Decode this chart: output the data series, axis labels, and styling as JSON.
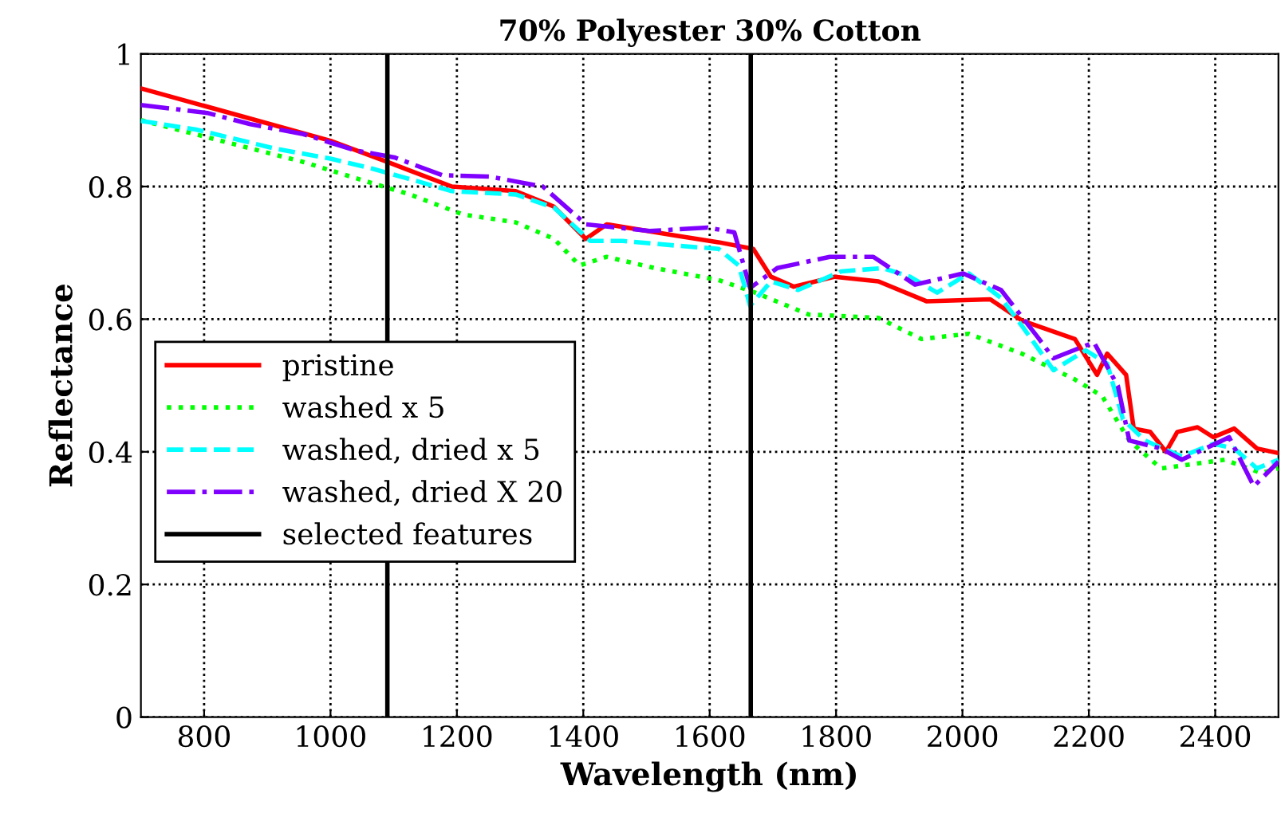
{
  "chart_data": {
    "type": "line",
    "title": "70% Polyester 30% Cotton",
    "xlabel": "Wavelength (nm)",
    "ylabel": "Reflectance",
    "xlim": [
      700,
      2500
    ],
    "ylim": [
      0,
      1
    ],
    "xticks": [
      800,
      1000,
      1200,
      1400,
      1600,
      1800,
      2000,
      2200,
      2400
    ],
    "yticks": [
      0,
      0.2,
      0.4,
      0.6,
      0.8,
      1
    ],
    "grid": true,
    "legend": "left",
    "marker": "none",
    "series": [
      {
        "name": "pristine",
        "color": "#ff0000",
        "line_style": "solid",
        "x": [
          700,
          1000,
          1090,
          1192,
          1293,
          1353,
          1404,
          1437,
          1546,
          1614,
          1669,
          1697,
          1733,
          1798,
          1867,
          1943,
          2044,
          2094,
          2178,
          2213,
          2229,
          2259,
          2271,
          2297,
          2322,
          2340,
          2372,
          2397,
          2430,
          2466,
          2500
        ],
        "values": [
          0.948,
          0.869,
          0.837,
          0.8,
          0.793,
          0.77,
          0.721,
          0.743,
          0.726,
          0.716,
          0.706,
          0.664,
          0.649,
          0.664,
          0.657,
          0.627,
          0.63,
          0.598,
          0.57,
          0.516,
          0.548,
          0.516,
          0.435,
          0.43,
          0.4,
          0.43,
          0.437,
          0.422,
          0.435,
          0.405,
          0.398
        ]
      },
      {
        "name": "washed x 5",
        "color": "#00ff00",
        "line_style": "dotted",
        "x": [
          700,
          957,
          1066,
          1126,
          1209,
          1293,
          1354,
          1394,
          1437,
          1513,
          1614,
          1672,
          1757,
          1867,
          1935,
          2010,
          2094,
          2178,
          2221,
          2264,
          2314,
          2415,
          2473,
          2500
        ],
        "values": [
          0.9,
          0.837,
          0.805,
          0.788,
          0.758,
          0.746,
          0.721,
          0.681,
          0.694,
          0.677,
          0.659,
          0.64,
          0.607,
          0.602,
          0.57,
          0.578,
          0.548,
          0.509,
          0.484,
          0.417,
          0.375,
          0.388,
          0.368,
          0.375
        ]
      },
      {
        "name": "washed, dried x 5",
        "color": "#00ffff",
        "line_style": "dashed",
        "x": [
          700,
          787,
          913,
          1000,
          1066,
          1141,
          1192,
          1293,
          1354,
          1411,
          1462,
          1546,
          1614,
          1646,
          1664,
          1697,
          1740,
          1808,
          1874,
          1917,
          1960,
          2010,
          2061,
          2094,
          2144,
          2195,
          2229,
          2254,
          2289,
          2347,
          2397,
          2430,
          2466,
          2500
        ],
        "values": [
          0.899,
          0.886,
          0.857,
          0.842,
          0.827,
          0.807,
          0.793,
          0.788,
          0.768,
          0.718,
          0.718,
          0.711,
          0.706,
          0.681,
          0.62,
          0.657,
          0.644,
          0.672,
          0.677,
          0.664,
          0.64,
          0.669,
          0.632,
          0.59,
          0.523,
          0.553,
          0.533,
          0.449,
          0.417,
          0.393,
          0.412,
          0.405,
          0.375,
          0.388
        ]
      },
      {
        "name": "washed, dried X 20",
        "color": "#8000ff",
        "line_style": "dashdot",
        "x": [
          700,
          805,
          873,
          957,
          1041,
          1101,
          1177,
          1252,
          1336,
          1404,
          1505,
          1597,
          1639,
          1664,
          1707,
          1790,
          1859,
          1925,
          2001,
          2061,
          2119,
          2144,
          2208,
          2246,
          2264,
          2314,
          2347,
          2422,
          2461,
          2500
        ],
        "values": [
          0.923,
          0.911,
          0.894,
          0.879,
          0.854,
          0.844,
          0.817,
          0.815,
          0.8,
          0.743,
          0.733,
          0.738,
          0.731,
          0.647,
          0.677,
          0.694,
          0.694,
          0.652,
          0.669,
          0.644,
          0.573,
          0.541,
          0.565,
          0.499,
          0.417,
          0.405,
          0.388,
          0.422,
          0.348,
          0.385
        ]
      }
    ],
    "ref_lines": [
      {
        "axis": "x",
        "value": 1090,
        "label": "selected features",
        "color": "#000000",
        "line_style": "solid"
      },
      {
        "axis": "x",
        "value": 1665,
        "color": "#000000",
        "line_style": "solid"
      }
    ]
  }
}
